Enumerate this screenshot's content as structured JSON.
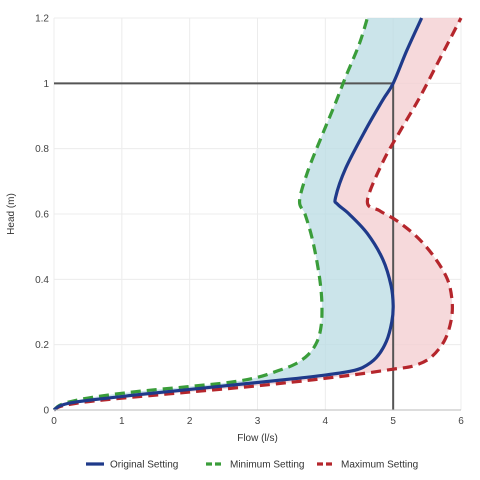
{
  "chart_data": {
    "type": "line",
    "title": "",
    "xlabel": "Flow (l/s)",
    "ylabel": "Head (m)",
    "xlim": [
      0,
      6
    ],
    "ylim": [
      0,
      1.2
    ],
    "x_ticks": [
      0,
      1,
      2,
      3,
      4,
      5,
      6
    ],
    "y_ticks": [
      0,
      0.2,
      0.4,
      0.6,
      0.8,
      1,
      1.2
    ],
    "x_tick_labels": [
      "0",
      "1",
      "2",
      "3",
      "4",
      "5",
      "6"
    ],
    "y_tick_labels": [
      "0",
      "0.2",
      "0.4",
      "0.6",
      "0.8",
      "1",
      "1.2"
    ],
    "grid": true,
    "legend_position": "bottom-center",
    "series": [
      {
        "name": "Original Setting",
        "color": "#1f3a8a",
        "style": "solid",
        "points": [
          [
            0,
            0
          ],
          [
            0.08,
            0.012
          ],
          [
            0.25,
            0.022
          ],
          [
            0.6,
            0.032
          ],
          [
            1.2,
            0.046
          ],
          [
            2.0,
            0.063
          ],
          [
            2.8,
            0.08
          ],
          [
            3.5,
            0.095
          ],
          [
            4.0,
            0.107
          ],
          [
            4.35,
            0.118
          ],
          [
            4.55,
            0.13
          ],
          [
            4.75,
            0.16
          ],
          [
            4.9,
            0.21
          ],
          [
            4.98,
            0.27
          ],
          [
            5.0,
            0.32
          ],
          [
            4.97,
            0.38
          ],
          [
            4.85,
            0.46
          ],
          [
            4.62,
            0.54
          ],
          [
            4.35,
            0.6
          ],
          [
            4.18,
            0.63
          ],
          [
            4.15,
            0.65
          ],
          [
            4.3,
            0.74
          ],
          [
            4.6,
            0.86
          ],
          [
            4.85,
            0.95
          ],
          [
            5.0,
            1.0
          ],
          [
            5.2,
            1.1
          ],
          [
            5.42,
            1.2
          ]
        ]
      },
      {
        "name": "Minimum Setting",
        "color": "#3a9d3a",
        "style": "dashed",
        "points": [
          [
            0,
            0
          ],
          [
            0.08,
            0.014
          ],
          [
            0.25,
            0.026
          ],
          [
            0.6,
            0.04
          ],
          [
            1.2,
            0.056
          ],
          [
            2.0,
            0.072
          ],
          [
            2.6,
            0.085
          ],
          [
            3.0,
            0.1
          ],
          [
            3.3,
            0.12
          ],
          [
            3.55,
            0.14
          ],
          [
            3.75,
            0.17
          ],
          [
            3.88,
            0.21
          ],
          [
            3.94,
            0.26
          ],
          [
            3.95,
            0.32
          ],
          [
            3.93,
            0.38
          ],
          [
            3.88,
            0.45
          ],
          [
            3.8,
            0.53
          ],
          [
            3.7,
            0.6
          ],
          [
            3.62,
            0.64
          ],
          [
            3.74,
            0.73
          ],
          [
            3.95,
            0.84
          ],
          [
            4.15,
            0.94
          ],
          [
            4.3,
            1.02
          ],
          [
            4.5,
            1.12
          ],
          [
            4.62,
            1.2
          ]
        ]
      },
      {
        "name": "Maximum Setting",
        "color": "#b5262c",
        "style": "dashed",
        "points": [
          [
            0,
            0
          ],
          [
            0.08,
            0.01
          ],
          [
            0.25,
            0.018
          ],
          [
            0.6,
            0.028
          ],
          [
            1.2,
            0.04
          ],
          [
            2.0,
            0.055
          ],
          [
            2.8,
            0.07
          ],
          [
            3.5,
            0.085
          ],
          [
            4.0,
            0.097
          ],
          [
            4.5,
            0.11
          ],
          [
            5.0,
            0.125
          ],
          [
            5.3,
            0.135
          ],
          [
            5.55,
            0.16
          ],
          [
            5.75,
            0.21
          ],
          [
            5.85,
            0.27
          ],
          [
            5.87,
            0.33
          ],
          [
            5.8,
            0.4
          ],
          [
            5.6,
            0.47
          ],
          [
            5.35,
            0.53
          ],
          [
            5.05,
            0.58
          ],
          [
            4.8,
            0.61
          ],
          [
            4.62,
            0.64
          ],
          [
            4.85,
            0.76
          ],
          [
            5.12,
            0.86
          ],
          [
            5.4,
            0.96
          ],
          [
            5.7,
            1.08
          ],
          [
            6.0,
            1.2
          ]
        ]
      }
    ],
    "reference_lines": [
      {
        "type": "horizontal",
        "y": 1,
        "x_from": 0,
        "x_to": 5,
        "color": "#555555"
      },
      {
        "type": "vertical",
        "x": 5,
        "y_from": 0,
        "y_to": 1,
        "color": "#555555"
      }
    ],
    "fill_colors": {
      "min_to_original": "#b9dbe3",
      "original_to_max": "#f4d0d2"
    }
  }
}
